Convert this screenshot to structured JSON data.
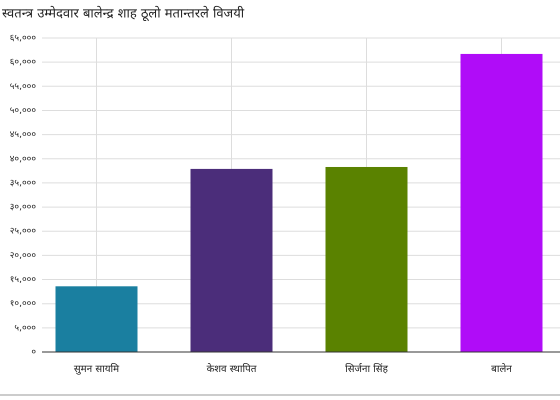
{
  "chart_data": {
    "type": "bar",
    "subtitle": "स्वतन्त्र उम्मेदवार बालेन्द्र शाह ठूलो मतान्तरले विजयी",
    "categories": [
      "सुमन सायमि",
      "केशव स्थापित",
      "सिर्जना सिंह",
      "बालेन"
    ],
    "values": [
      13600,
      37900,
      38300,
      61700
    ],
    "colors": [
      "#1a7fa0",
      "#4b2d7a",
      "#5a8200",
      "#b00cf8"
    ],
    "ylim": [
      0,
      65000
    ],
    "yticks": [
      {
        "value": 0,
        "label": "०"
      },
      {
        "value": 5000,
        "label": "५,०००"
      },
      {
        "value": 10000,
        "label": "१०,०००"
      },
      {
        "value": 15000,
        "label": "१५,०००"
      },
      {
        "value": 20000,
        "label": "२०,०००"
      },
      {
        "value": 25000,
        "label": "२५,०००"
      },
      {
        "value": 30000,
        "label": "३०,०००"
      },
      {
        "value": 35000,
        "label": "३५,०००"
      },
      {
        "value": 40000,
        "label": "४०,०००"
      },
      {
        "value": 45000,
        "label": "४५,०००"
      },
      {
        "value": 50000,
        "label": "५०,०००"
      },
      {
        "value": 55000,
        "label": "५५,०००"
      },
      {
        "value": 60000,
        "label": "६०,०००"
      },
      {
        "value": 65000,
        "label": "६५,०००"
      }
    ],
    "grid": true
  }
}
